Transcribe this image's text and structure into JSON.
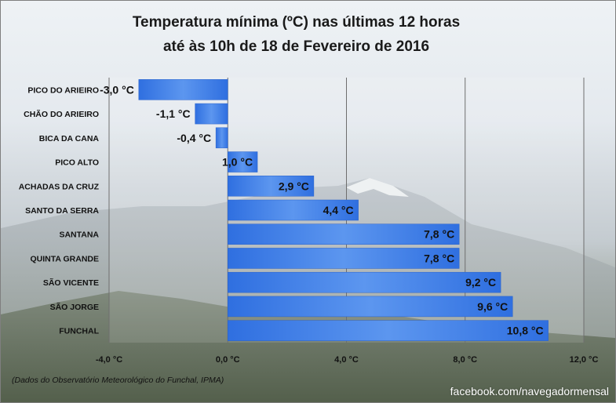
{
  "title_line1": "Temperatura mínima (ºC) nas últimas 12 horas",
  "title_line2": "até às 10h de 18 de Fevereiro de 2016",
  "source_note": "(Dados do Observatório Meteorológico do Funchal, IPMA)",
  "credit": "facebook.com/navegadormensal",
  "colors": {
    "bar": "#3f7fe6",
    "gridline": "#6e6e6e",
    "text": "#111111"
  },
  "chart_data": {
    "type": "bar",
    "orientation": "horizontal",
    "categories": [
      "PICO DO ARIEIRO",
      "CHÃO DO ARIEIRO",
      "BICA DA CANA",
      "PICO ALTO",
      "ACHADAS DA CRUZ",
      "SANTO DA SERRA",
      "SANTANA",
      "QUINTA GRANDE",
      "SÃO VICENTE",
      "SÃO JORGE",
      "FUNCHAL"
    ],
    "values": [
      -3.0,
      -1.1,
      -0.4,
      1.0,
      2.9,
      4.4,
      7.8,
      7.8,
      9.2,
      9.6,
      10.8
    ],
    "value_labels": [
      "-3,0 °C",
      "-1,1 °C",
      "-0,4 °C",
      "1,0 °C",
      "2,9 °C",
      "4,4 °C",
      "7,8 °C",
      "7,8 °C",
      "9,2 °C",
      "9,6 °C",
      "10,8 °C"
    ],
    "xlim": [
      -4.0,
      12.0
    ],
    "xticks": [
      -4.0,
      0.0,
      4.0,
      8.0,
      12.0
    ],
    "xtick_labels": [
      "-4,0 °C",
      "0,0 °C",
      "4,0 °C",
      "8,0 °C",
      "12,0 °C"
    ],
    "grid": true
  }
}
